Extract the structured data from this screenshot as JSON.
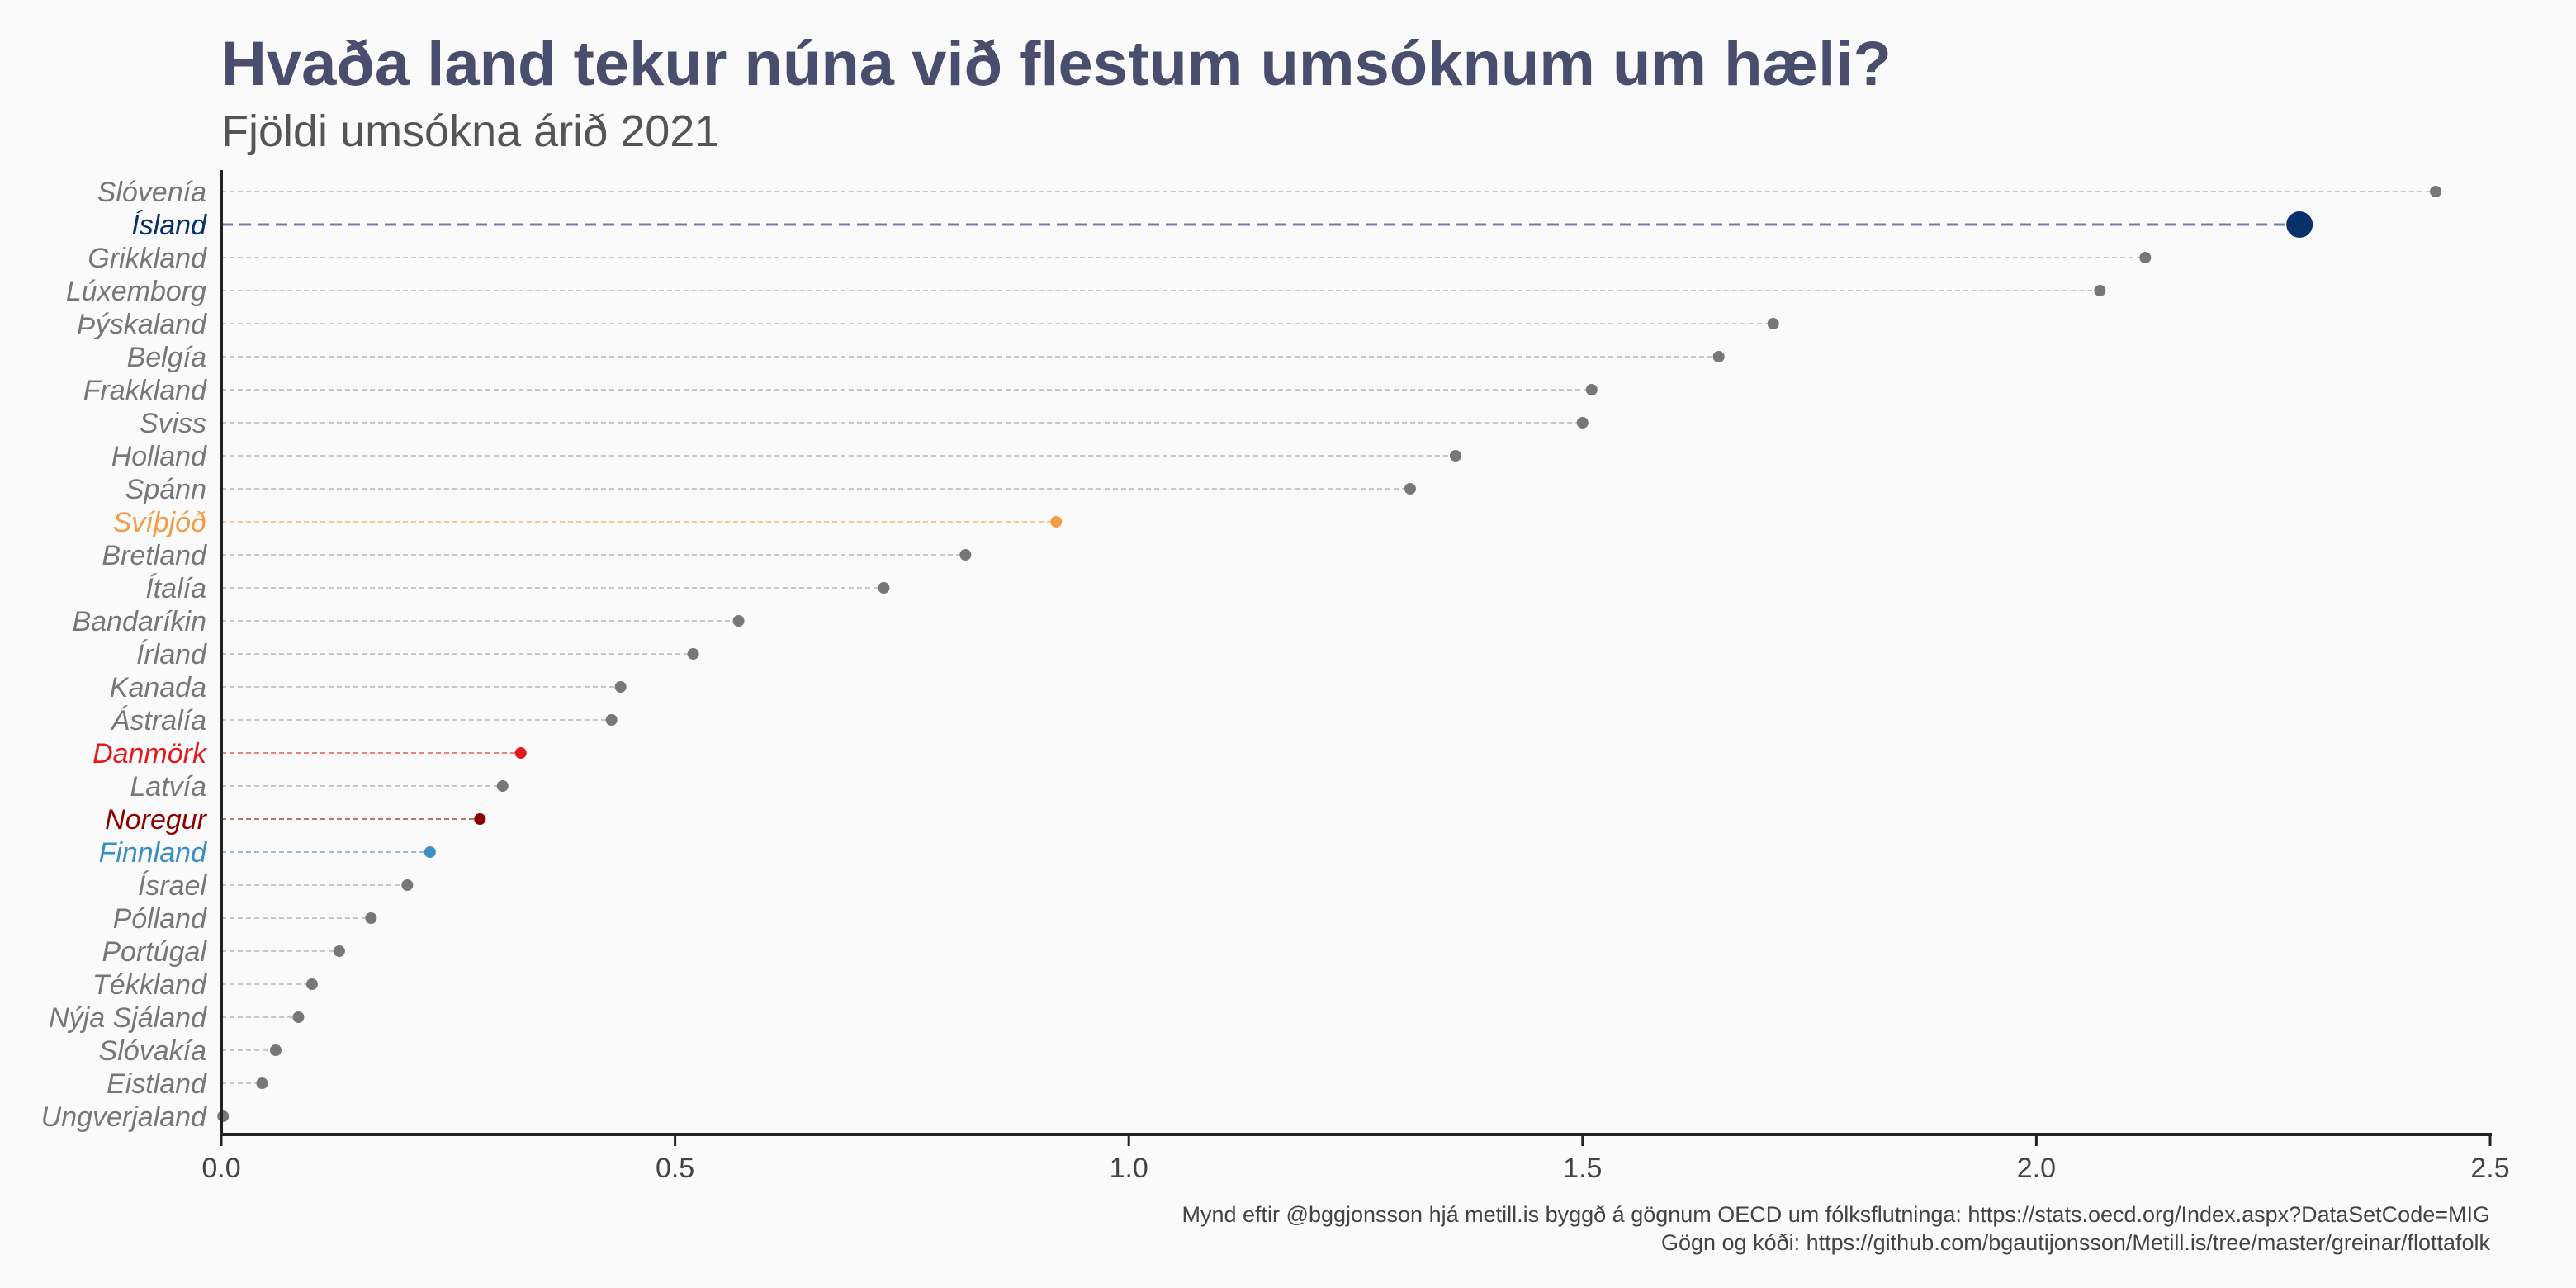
{
  "header": {
    "title": "Hvaða land tekur núna við flestum umsóknum um hæli?",
    "subtitle": "Fjöldi umsókna árið 2021"
  },
  "footer": {
    "caption_line1": "Mynd eftir @bggjonsson hjá metill.is byggð á gögnum OECD um fólksflutninga: https://stats.oecd.org/Index.aspx?DataSetCode=MIG",
    "caption_line2": "Gögn og kóði: https://github.com/bgautijonsson/Metill.is/tree/master/greinar/flottafolk"
  },
  "chart_data": {
    "type": "scatter",
    "style": "lollipop",
    "title": "Hvaða land tekur núna við flestum umsóknum um hæli?",
    "subtitle": "Fjöldi umsókna árið 2021",
    "xlim": [
      0,
      2.5
    ],
    "x_ticks": [
      "0.0",
      "0.5",
      "1.0",
      "1.5",
      "2.0",
      "2.5"
    ],
    "x_tick_values": [
      0,
      0.5,
      1.0,
      1.5,
      2.0,
      2.5
    ],
    "grid": false,
    "default_color": "#777777",
    "points": [
      {
        "country": "Slóvenía",
        "value": 2.44,
        "color": "#777777"
      },
      {
        "country": "Ísland",
        "value": 2.29,
        "color": "#08306b",
        "highlight": true
      },
      {
        "country": "Grikkland",
        "value": 2.12,
        "color": "#777777"
      },
      {
        "country": "Lúxemborg",
        "value": 2.07,
        "color": "#777777"
      },
      {
        "country": "Þýskaland",
        "value": 1.71,
        "color": "#777777"
      },
      {
        "country": "Belgía",
        "value": 1.65,
        "color": "#777777"
      },
      {
        "country": "Frakkland",
        "value": 1.51,
        "color": "#777777"
      },
      {
        "country": "Sviss",
        "value": 1.5,
        "color": "#777777"
      },
      {
        "country": "Holland",
        "value": 1.36,
        "color": "#777777"
      },
      {
        "country": "Spánn",
        "value": 1.31,
        "color": "#777777"
      },
      {
        "country": "Svíþjóð",
        "value": 0.92,
        "color": "#f39c45"
      },
      {
        "country": "Bretland",
        "value": 0.82,
        "color": "#777777"
      },
      {
        "country": "Ítalía",
        "value": 0.73,
        "color": "#777777"
      },
      {
        "country": "Bandaríkin",
        "value": 0.57,
        "color": "#777777"
      },
      {
        "country": "Írland",
        "value": 0.52,
        "color": "#777777"
      },
      {
        "country": "Kanada",
        "value": 0.44,
        "color": "#777777"
      },
      {
        "country": "Ástralía",
        "value": 0.43,
        "color": "#777777"
      },
      {
        "country": "Danmörk",
        "value": 0.33,
        "color": "#e31a1c"
      },
      {
        "country": "Latvía",
        "value": 0.31,
        "color": "#777777"
      },
      {
        "country": "Noregur",
        "value": 0.285,
        "color": "#8b0000"
      },
      {
        "country": "Finnland",
        "value": 0.23,
        "color": "#3a8fc4"
      },
      {
        "country": "Ísrael",
        "value": 0.205,
        "color": "#777777"
      },
      {
        "country": "Pólland",
        "value": 0.165,
        "color": "#777777"
      },
      {
        "country": "Portúgal",
        "value": 0.13,
        "color": "#777777"
      },
      {
        "country": "Tékkland",
        "value": 0.1,
        "color": "#777777"
      },
      {
        "country": "Nýja Sjáland",
        "value": 0.085,
        "color": "#777777"
      },
      {
        "country": "Slóvakía",
        "value": 0.06,
        "color": "#777777"
      },
      {
        "country": "Eistland",
        "value": 0.045,
        "color": "#777777"
      },
      {
        "country": "Ungverjaland",
        "value": 0.002,
        "color": "#777777"
      }
    ]
  }
}
